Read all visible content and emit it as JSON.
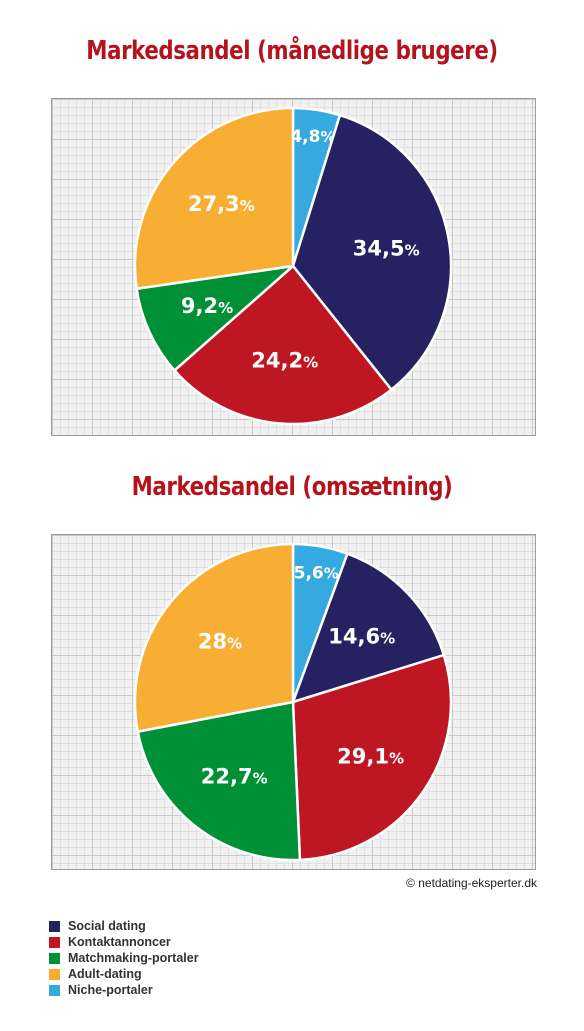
{
  "colors": {
    "social": "#262262",
    "kontakt": "#be1622",
    "matchmaking": "#009036",
    "adult": "#f7ae32",
    "niche": "#36a9e1"
  },
  "chart_data": [
    {
      "type": "pie",
      "title": "Markedsandel (månedlige brugere)",
      "slices": [
        {
          "name": "Niche-portaler",
          "value": 4.8,
          "label": "4,8",
          "color_key": "niche"
        },
        {
          "name": "Social dating",
          "value": 34.5,
          "label": "34,5",
          "color_key": "social"
        },
        {
          "name": "Kontaktannoncer",
          "value": 24.2,
          "label": "24,2",
          "color_key": "kontakt"
        },
        {
          "name": "Matchmaking-portaler",
          "value": 9.2,
          "label": "9,2",
          "color_key": "matchmaking"
        },
        {
          "name": "Adult-dating",
          "value": 27.3,
          "label": "27,3",
          "color_key": "adult"
        }
      ]
    },
    {
      "type": "pie",
      "title": "Markedsandel (omsætning)",
      "slices": [
        {
          "name": "Niche-portaler",
          "value": 5.6,
          "label": "5,6",
          "color_key": "niche"
        },
        {
          "name": "Social dating",
          "value": 14.6,
          "label": "14,6",
          "color_key": "social"
        },
        {
          "name": "Kontaktannoncer",
          "value": 29.1,
          "label": "29,1",
          "color_key": "kontakt"
        },
        {
          "name": "Matchmaking-portaler",
          "value": 22.7,
          "label": "22,7",
          "color_key": "matchmaking"
        },
        {
          "name": "Adult-dating",
          "value": 28,
          "label": "28",
          "color_key": "adult"
        }
      ]
    }
  ],
  "percent_sign": "%",
  "copyright": "© netdating-eksperter.dk",
  "legend": [
    {
      "label": "Social dating",
      "color_key": "social"
    },
    {
      "label": "Kontaktannoncer",
      "color_key": "kontakt"
    },
    {
      "label": "Matchmaking-portaler",
      "color_key": "matchmaking"
    },
    {
      "label": "Adult-dating",
      "color_key": "adult"
    },
    {
      "label": "Niche-portaler",
      "color_key": "niche"
    }
  ]
}
